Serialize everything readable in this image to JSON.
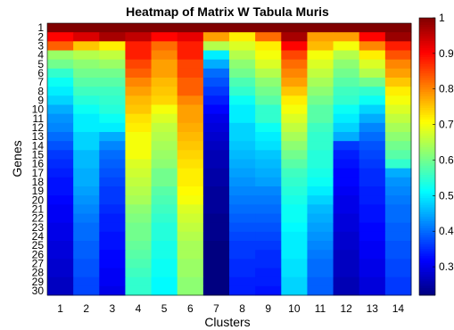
{
  "chart_data": {
    "type": "heatmap",
    "title": "Heatmap of Matrix W Tabula Muris",
    "xlabel": "Clusters",
    "ylabel": "Genes",
    "x_categories": [
      "1",
      "2",
      "3",
      "4",
      "5",
      "6",
      "7",
      "8",
      "9",
      "10",
      "11",
      "12",
      "13",
      "14"
    ],
    "y_categories": [
      "1",
      "2",
      "3",
      "4",
      "5",
      "6",
      "7",
      "8",
      "9",
      "10",
      "11",
      "12",
      "13",
      "14",
      "15",
      "16",
      "17",
      "18",
      "19",
      "20",
      "21",
      "22",
      "23",
      "24",
      "25",
      "26",
      "27",
      "28",
      "29",
      "30"
    ],
    "colorbar": {
      "range": [
        0.22,
        1.0
      ],
      "ticks": [
        "0.3",
        "0.4",
        "0.5",
        "0.6",
        "0.7",
        "0.8",
        "0.9",
        "1"
      ],
      "tick_values": [
        0.3,
        0.4,
        0.5,
        0.6,
        0.7,
        0.8,
        0.9,
        1.0
      ],
      "colormap": "jet"
    },
    "grid": false,
    "values": [
      [
        1.0,
        1.0,
        1.0,
        1.0,
        1.0,
        1.0,
        1.0,
        1.0,
        1.0,
        1.0,
        1.0,
        1.0,
        1.0,
        1.0
      ],
      [
        0.9,
        0.93,
        0.97,
        0.95,
        0.9,
        0.92,
        0.78,
        0.72,
        0.82,
        0.97,
        0.78,
        0.78,
        0.9,
        0.98
      ],
      [
        0.83,
        0.75,
        0.72,
        0.88,
        0.82,
        0.88,
        0.65,
        0.68,
        0.72,
        0.9,
        0.76,
        0.7,
        0.8,
        0.88
      ],
      [
        0.63,
        0.65,
        0.66,
        0.88,
        0.8,
        0.88,
        0.5,
        0.65,
        0.7,
        0.85,
        0.7,
        0.65,
        0.72,
        0.84
      ],
      [
        0.6,
        0.62,
        0.63,
        0.85,
        0.78,
        0.85,
        0.45,
        0.62,
        0.68,
        0.82,
        0.68,
        0.62,
        0.68,
        0.8
      ],
      [
        0.55,
        0.6,
        0.6,
        0.83,
        0.78,
        0.85,
        0.4,
        0.6,
        0.65,
        0.8,
        0.66,
        0.6,
        0.65,
        0.78
      ],
      [
        0.52,
        0.58,
        0.58,
        0.8,
        0.76,
        0.83,
        0.38,
        0.57,
        0.62,
        0.78,
        0.64,
        0.58,
        0.6,
        0.75
      ],
      [
        0.5,
        0.56,
        0.56,
        0.78,
        0.75,
        0.83,
        0.36,
        0.55,
        0.6,
        0.75,
        0.62,
        0.56,
        0.55,
        0.72
      ],
      [
        0.48,
        0.54,
        0.55,
        0.76,
        0.74,
        0.8,
        0.34,
        0.52,
        0.58,
        0.72,
        0.6,
        0.55,
        0.52,
        0.7
      ],
      [
        0.45,
        0.52,
        0.54,
        0.75,
        0.7,
        0.78,
        0.32,
        0.5,
        0.55,
        0.7,
        0.58,
        0.52,
        0.48,
        0.68
      ],
      [
        0.43,
        0.5,
        0.52,
        0.73,
        0.68,
        0.78,
        0.3,
        0.5,
        0.55,
        0.68,
        0.58,
        0.5,
        0.45,
        0.66
      ],
      [
        0.42,
        0.5,
        0.5,
        0.72,
        0.66,
        0.77,
        0.29,
        0.48,
        0.52,
        0.66,
        0.56,
        0.48,
        0.42,
        0.64
      ],
      [
        0.4,
        0.48,
        0.45,
        0.7,
        0.65,
        0.76,
        0.28,
        0.48,
        0.5,
        0.64,
        0.55,
        0.45,
        0.4,
        0.62
      ],
      [
        0.38,
        0.48,
        0.42,
        0.7,
        0.64,
        0.75,
        0.27,
        0.47,
        0.49,
        0.62,
        0.55,
        0.36,
        0.38,
        0.6
      ],
      [
        0.36,
        0.46,
        0.4,
        0.7,
        0.63,
        0.74,
        0.26,
        0.46,
        0.47,
        0.6,
        0.54,
        0.34,
        0.37,
        0.58
      ],
      [
        0.35,
        0.46,
        0.39,
        0.68,
        0.62,
        0.73,
        0.26,
        0.45,
        0.46,
        0.58,
        0.54,
        0.33,
        0.36,
        0.55
      ],
      [
        0.34,
        0.45,
        0.38,
        0.67,
        0.6,
        0.72,
        0.25,
        0.44,
        0.45,
        0.56,
        0.53,
        0.32,
        0.35,
        0.45
      ],
      [
        0.33,
        0.45,
        0.37,
        0.66,
        0.6,
        0.72,
        0.25,
        0.43,
        0.44,
        0.55,
        0.52,
        0.32,
        0.35,
        0.43
      ],
      [
        0.33,
        0.44,
        0.36,
        0.65,
        0.58,
        0.71,
        0.24,
        0.42,
        0.42,
        0.54,
        0.5,
        0.31,
        0.34,
        0.42
      ],
      [
        0.32,
        0.43,
        0.36,
        0.64,
        0.57,
        0.7,
        0.24,
        0.41,
        0.41,
        0.53,
        0.48,
        0.3,
        0.34,
        0.41
      ],
      [
        0.31,
        0.42,
        0.35,
        0.62,
        0.56,
        0.68,
        0.24,
        0.4,
        0.4,
        0.52,
        0.46,
        0.3,
        0.33,
        0.4
      ],
      [
        0.31,
        0.41,
        0.34,
        0.61,
        0.55,
        0.67,
        0.23,
        0.39,
        0.39,
        0.52,
        0.45,
        0.29,
        0.33,
        0.4
      ],
      [
        0.3,
        0.4,
        0.34,
        0.6,
        0.54,
        0.66,
        0.23,
        0.38,
        0.38,
        0.51,
        0.44,
        0.29,
        0.32,
        0.39
      ],
      [
        0.3,
        0.4,
        0.33,
        0.6,
        0.54,
        0.65,
        0.23,
        0.37,
        0.37,
        0.5,
        0.43,
        0.28,
        0.32,
        0.39
      ],
      [
        0.29,
        0.39,
        0.33,
        0.59,
        0.53,
        0.64,
        0.22,
        0.36,
        0.36,
        0.5,
        0.42,
        0.28,
        0.31,
        0.38
      ],
      [
        0.29,
        0.39,
        0.32,
        0.58,
        0.53,
        0.64,
        0.22,
        0.36,
        0.35,
        0.5,
        0.41,
        0.27,
        0.31,
        0.38
      ],
      [
        0.28,
        0.38,
        0.32,
        0.57,
        0.52,
        0.63,
        0.22,
        0.35,
        0.35,
        0.49,
        0.4,
        0.27,
        0.3,
        0.37
      ],
      [
        0.28,
        0.38,
        0.31,
        0.56,
        0.52,
        0.63,
        0.22,
        0.35,
        0.34,
        0.49,
        0.4,
        0.27,
        0.3,
        0.37
      ],
      [
        0.27,
        0.37,
        0.31,
        0.55,
        0.51,
        0.62,
        0.22,
        0.34,
        0.34,
        0.48,
        0.39,
        0.26,
        0.29,
        0.36
      ],
      [
        0.27,
        0.37,
        0.3,
        0.55,
        0.51,
        0.62,
        0.22,
        0.34,
        0.33,
        0.48,
        0.39,
        0.26,
        0.29,
        0.36
      ]
    ]
  }
}
